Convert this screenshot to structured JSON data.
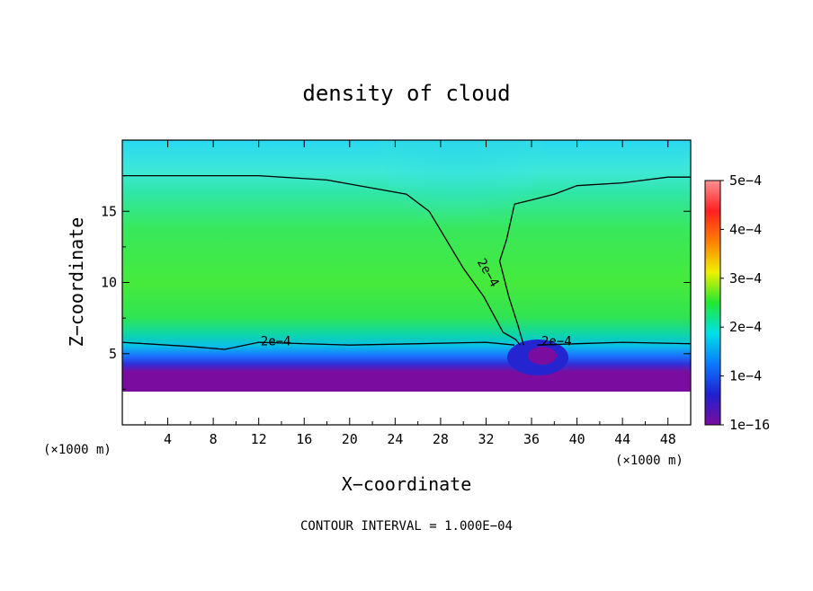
{
  "chart_data": {
    "type": "heatmap",
    "title": "density of cloud",
    "xlabel": "X−coordinate",
    "ylabel": "Z−coordinate",
    "x_unit": "(×1000 m)",
    "y_unit": "(×1000 m)",
    "xlim": [
      0,
      50
    ],
    "ylim": [
      0,
      20
    ],
    "x_ticks": [
      "4",
      "8",
      "12",
      "16",
      "20",
      "24",
      "28",
      "32",
      "36",
      "40",
      "44",
      "48"
    ],
    "y_ticks": [
      "5",
      "10",
      "15"
    ],
    "colorbar": {
      "min": 1e-16,
      "max": 0.0005,
      "labels": [
        "1e−16",
        "1e−4",
        "2e−4",
        "3e−4",
        "4e−4",
        "5e−4"
      ],
      "colors": [
        "#7a0da0",
        "#2020d0",
        "#0a7aff",
        "#00e0e8",
        "#22e830",
        "#f0f000",
        "#ff8000",
        "#ff2020",
        "#ff9090"
      ]
    },
    "contour_label": "2e−4",
    "contour_value": 0.0002,
    "contour_line": {
      "left_top": [
        [
          0,
          17.5
        ],
        [
          12,
          17.5
        ],
        [
          18,
          17.2
        ],
        [
          25,
          16.2
        ],
        [
          27,
          15.0
        ],
        [
          30,
          11.0
        ],
        [
          31.8,
          9.0
        ],
        [
          33.5,
          6.5
        ],
        [
          34.6,
          6.0
        ],
        [
          35,
          5.6
        ]
      ],
      "right_top": [
        [
          35.3,
          5.6
        ],
        [
          34.8,
          7.0
        ],
        [
          34.0,
          9.0
        ],
        [
          33.2,
          11.5
        ],
        [
          33.8,
          13.0
        ],
        [
          34.5,
          15.5
        ],
        [
          36,
          15.8
        ],
        [
          38,
          16.2
        ],
        [
          40,
          16.8
        ],
        [
          44,
          17.0
        ],
        [
          48,
          17.4
        ],
        [
          50,
          17.4
        ]
      ],
      "left_bottom": [
        [
          0,
          5.8
        ],
        [
          6,
          5.5
        ],
        [
          9,
          5.3
        ],
        [
          12,
          5.8
        ],
        [
          20,
          5.6
        ],
        [
          26,
          5.7
        ],
        [
          32,
          5.8
        ],
        [
          34.5,
          5.6
        ]
      ],
      "right_bottom": [
        [
          36.5,
          5.6
        ],
        [
          40,
          5.7
        ],
        [
          44,
          5.8
        ],
        [
          50,
          5.7
        ]
      ]
    },
    "contour_label_positions": [
      [
        13.5,
        5.9
      ],
      [
        32.2,
        10.7
      ],
      [
        38.2,
        5.9
      ]
    ],
    "footer": "CONTOUR INTERVAL = 1.000E−04"
  }
}
